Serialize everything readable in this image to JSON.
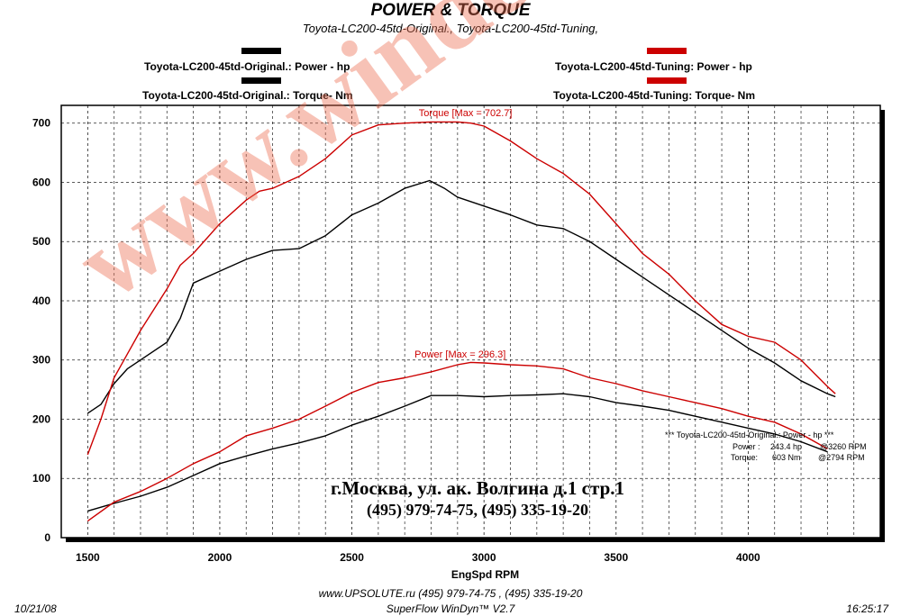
{
  "header": {
    "title": "POWER & TORQUE",
    "subtitle": "Toyota-LC200-45td-Original., Toyota-LC200-45td-Tuning,"
  },
  "legend": {
    "items": [
      {
        "label": "Toyota-LC200-45td-Original.: Power -  hp",
        "color": "#000000"
      },
      {
        "label": "Toyota-LC200-45td-Original.: Torque-  Nm",
        "color": "#000000"
      },
      {
        "label": "Toyota-LC200-45td-Tuning: Power -  hp",
        "color": "#cc0000"
      },
      {
        "label": "Toyota-LC200-45td-Tuning: Torque-  Nm",
        "color": "#cc0000"
      }
    ]
  },
  "watermark": "www.winde.ru",
  "address": {
    "line1": "г.Москва, ул. ак. Волгина д.1 стр.1",
    "line2": "(495) 979-74-75, (495) 335-19-20"
  },
  "info_box": {
    "header": "*** Toyota-LC200-45td-Original.: Power - hp ***",
    "power_label": "Power :",
    "power_value": "243.4 hp",
    "power_rpm": "@3260 RPM",
    "torque_label": "Torque:",
    "torque_value": "603 Nm",
    "torque_rpm": "@2794 RPM"
  },
  "footer": {
    "url": "www.UPSOLUTE.ru  (495) 979-74-75 , (495) 335-19-20",
    "software": "SuperFlow WinDyn™ V2.7",
    "date": "10/21/08",
    "time": "16:25:17"
  },
  "chart_data": {
    "type": "line",
    "title": "POWER & TORQUE",
    "xlabel": "EngSpd  RPM",
    "ylabel": "",
    "xlim": [
      1400,
      4500
    ],
    "ylim": [
      0,
      730
    ],
    "xticks": [
      1500,
      2000,
      2500,
      3000,
      3500,
      4000
    ],
    "yticks": [
      0,
      100,
      200,
      300,
      400,
      500,
      600,
      700
    ],
    "grid": true,
    "legend_position": "top",
    "annotations": [
      {
        "text": "Torque [Max = 702.7]",
        "x": 2930,
        "y": 712,
        "color": "#cc0000"
      },
      {
        "text": "Power  [Max = 296.3]",
        "x": 2910,
        "y": 304,
        "color": "#cc0000"
      }
    ],
    "series": [
      {
        "name": "Toyota-LC200-45td-Original.: Power -  hp",
        "color": "#000000",
        "x": [
          1500,
          1600,
          1700,
          1800,
          1900,
          2000,
          2100,
          2200,
          2300,
          2400,
          2500,
          2600,
          2700,
          2800,
          2900,
          3000,
          3100,
          3200,
          3300,
          3400,
          3500,
          3600,
          3700,
          3800,
          3900,
          4000,
          4100,
          4200,
          4300
        ],
        "values": [
          45,
          58,
          70,
          85,
          105,
          125,
          138,
          150,
          160,
          172,
          190,
          205,
          222,
          240,
          240,
          238,
          240,
          241,
          243,
          238,
          228,
          222,
          215,
          205,
          195,
          185,
          175,
          162,
          145
        ]
      },
      {
        "name": "Toyota-LC200-45td-Original.: Torque-  Nm",
        "color": "#000000",
        "x": [
          1500,
          1550,
          1600,
          1650,
          1700,
          1800,
          1850,
          1900,
          2000,
          2100,
          2200,
          2300,
          2400,
          2500,
          2600,
          2700,
          2794,
          2850,
          2900,
          3000,
          3100,
          3200,
          3300,
          3400,
          3500,
          3600,
          3700,
          3800,
          3900,
          4000,
          4100,
          4200,
          4300,
          4330
        ],
        "values": [
          210,
          225,
          260,
          285,
          300,
          330,
          370,
          430,
          450,
          470,
          485,
          488,
          510,
          545,
          565,
          590,
          603,
          590,
          575,
          560,
          545,
          528,
          522,
          500,
          470,
          440,
          410,
          380,
          350,
          320,
          295,
          265,
          243,
          238
        ]
      },
      {
        "name": "Toyota-LC200-45td-Tuning: Power -  hp",
        "color": "#cc0000",
        "x": [
          1500,
          1600,
          1700,
          1800,
          1900,
          2000,
          2100,
          2200,
          2300,
          2400,
          2500,
          2600,
          2700,
          2800,
          2900,
          2950,
          3000,
          3100,
          3200,
          3300,
          3400,
          3500,
          3600,
          3700,
          3800,
          3900,
          4000,
          4100,
          4200,
          4300
        ],
        "values": [
          28,
          60,
          78,
          100,
          125,
          145,
          172,
          185,
          200,
          222,
          245,
          262,
          270,
          280,
          292,
          296,
          295,
          292,
          290,
          285,
          270,
          260,
          248,
          238,
          228,
          218,
          205,
          195,
          175,
          150
        ]
      },
      {
        "name": "Toyota-LC200-45td-Tuning: Torque-  Nm",
        "color": "#cc0000",
        "x": [
          1500,
          1550,
          1600,
          1650,
          1700,
          1800,
          1850,
          1900,
          2000,
          2100,
          2150,
          2200,
          2300,
          2400,
          2500,
          2600,
          2700,
          2800,
          2900,
          2950,
          3000,
          3100,
          3200,
          3300,
          3400,
          3500,
          3600,
          3700,
          3800,
          3900,
          4000,
          4100,
          4200,
          4300,
          4330
        ],
        "values": [
          140,
          200,
          270,
          310,
          350,
          420,
          460,
          480,
          530,
          570,
          585,
          590,
          610,
          640,
          680,
          697,
          700,
          702,
          702,
          700,
          695,
          670,
          640,
          615,
          580,
          530,
          480,
          445,
          400,
          360,
          340,
          330,
          300,
          255,
          243
        ]
      }
    ]
  }
}
